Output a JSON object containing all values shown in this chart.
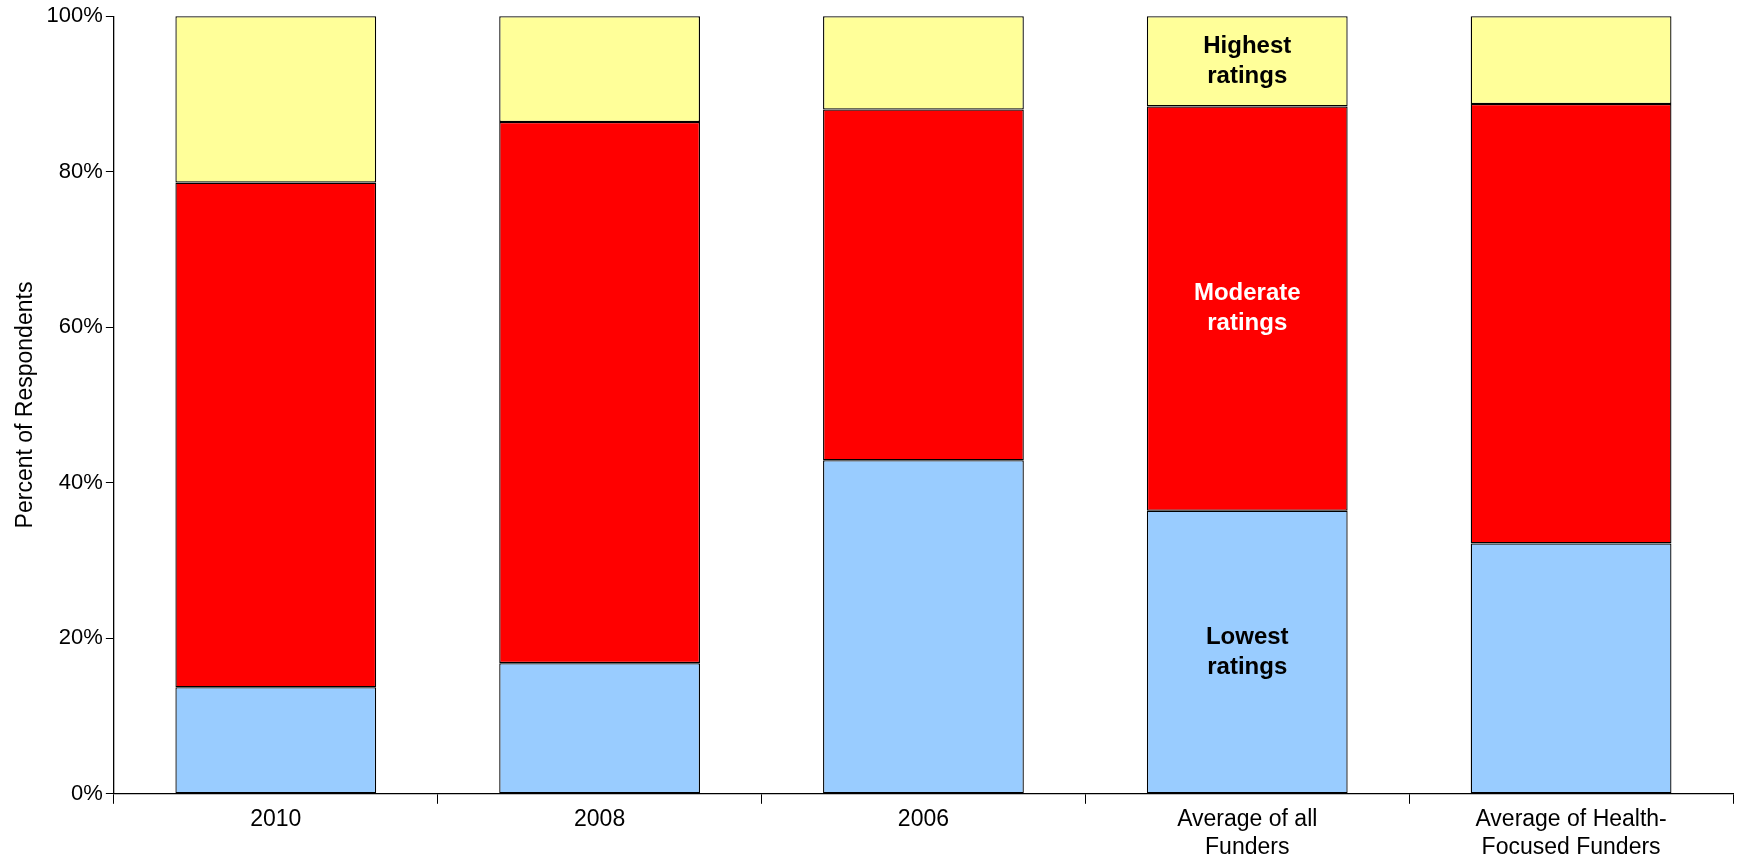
{
  "chart_data": {
    "type": "bar",
    "stacked": true,
    "ylabel": "Percent of Respondents",
    "categories": [
      "2010",
      "2008",
      "2006",
      "Average of all Funders",
      "Average of Health-Focused Funders"
    ],
    "series": [
      {
        "name": "Lowest ratings",
        "color": "#99ccff",
        "values": [
          13.7,
          16.8,
          42.9,
          36.4,
          32.2
        ]
      },
      {
        "name": "Moderate ratings",
        "color": "#ff0000",
        "values": [
          64.9,
          69.6,
          45.1,
          52.0,
          56.5
        ]
      },
      {
        "name": "Highest ratings",
        "color": "#ffff99",
        "values": [
          21.4,
          13.6,
          12.0,
          11.6,
          11.3
        ]
      }
    ],
    "ylim": [
      0,
      100
    ],
    "yticks": [
      {
        "value": 0,
        "label": "0%"
      },
      {
        "value": 20,
        "label": "20%"
      },
      {
        "value": 40,
        "label": "40%"
      },
      {
        "value": 60,
        "label": "60%"
      },
      {
        "value": 80,
        "label": "80%"
      },
      {
        "value": 100,
        "label": "100%"
      }
    ],
    "grid": false,
    "legend": false
  }
}
